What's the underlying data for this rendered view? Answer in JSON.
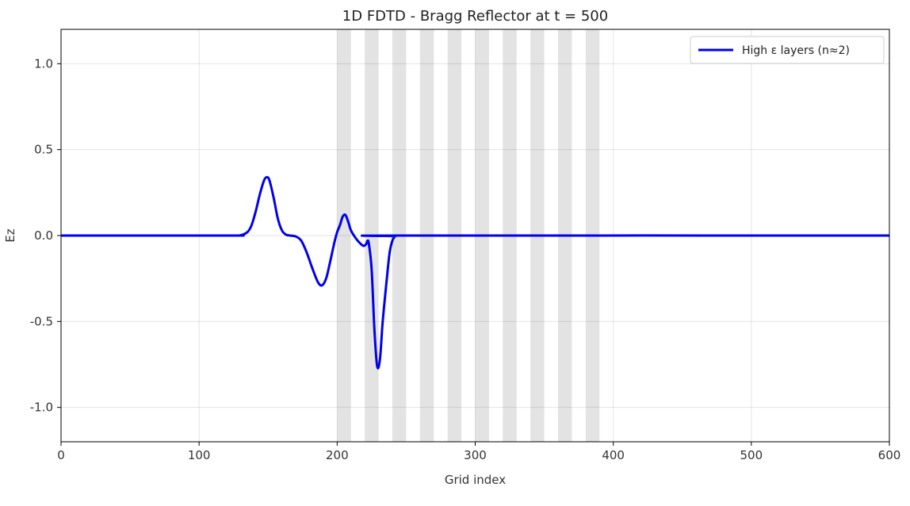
{
  "chart_data": {
    "type": "line",
    "title": "1D FDTD - Bragg Reflector at t = 500",
    "xlabel": "Grid index",
    "ylabel": "Ez",
    "xlim": [
      0,
      600
    ],
    "ylim": [
      -1.2,
      1.2
    ],
    "x_ticks": [
      0,
      100,
      200,
      300,
      400,
      500,
      600
    ],
    "x_tick_labels": [
      "0",
      "100",
      "200",
      "300",
      "400",
      "500",
      "600"
    ],
    "y_ticks": [
      1.0,
      0.5,
      0.0,
      -0.5,
      -1.0
    ],
    "y_tick_labels": [
      "1.0",
      "0.5",
      "0.0",
      "-0.5",
      "-1.0"
    ],
    "grid": true,
    "legend_position": "top-right",
    "high_eps_layers": [
      [
        200,
        210
      ],
      [
        220,
        230
      ],
      [
        240,
        250
      ],
      [
        260,
        270
      ],
      [
        280,
        290
      ],
      [
        300,
        310
      ],
      [
        320,
        330
      ],
      [
        340,
        350
      ],
      [
        360,
        370
      ],
      [
        380,
        390
      ]
    ],
    "layer_color": "#e3e3e3",
    "series": [
      {
        "name": "High ε layers (n≈2)",
        "color": "#0000ee",
        "points": [
          [
            0,
            0
          ],
          [
            120,
            0
          ],
          [
            130,
            0.002
          ],
          [
            135,
            0.02
          ],
          [
            138,
            0.06
          ],
          [
            141,
            0.14
          ],
          [
            144,
            0.24
          ],
          [
            147,
            0.32
          ],
          [
            149,
            0.34
          ],
          [
            151,
            0.32
          ],
          [
            154,
            0.22
          ],
          [
            157,
            0.1
          ],
          [
            160,
            0.03
          ],
          [
            163,
            0.005
          ],
          [
            166,
            0.0
          ],
          [
            170,
            -0.005
          ],
          [
            174,
            -0.03
          ],
          [
            178,
            -0.1
          ],
          [
            182,
            -0.19
          ],
          [
            186,
            -0.27
          ],
          [
            189,
            -0.29
          ],
          [
            192,
            -0.25
          ],
          [
            195,
            -0.15
          ],
          [
            198,
            -0.04
          ],
          [
            200,
            0.02
          ],
          [
            202,
            0.06
          ],
          [
            204,
            0.11
          ],
          [
            206,
            0.12
          ],
          [
            208,
            0.08
          ],
          [
            210,
            0.03
          ],
          [
            213,
            -0.01
          ],
          [
            216,
            -0.04
          ],
          [
            219,
            -0.06
          ],
          [
            221,
            -0.05
          ],
          [
            222,
            -0.03
          ],
          [
            223,
            -0.05
          ],
          [
            225,
            -0.2
          ],
          [
            227,
            -0.55
          ],
          [
            229,
            -0.76
          ],
          [
            231,
            -0.72
          ],
          [
            233,
            -0.5
          ],
          [
            236,
            -0.25
          ],
          [
            238,
            -0.1
          ],
          [
            240,
            -0.03
          ],
          [
            242,
            -0.005
          ],
          [
            245,
            0.0
          ],
          [
            600,
            0
          ]
        ]
      }
    ]
  }
}
